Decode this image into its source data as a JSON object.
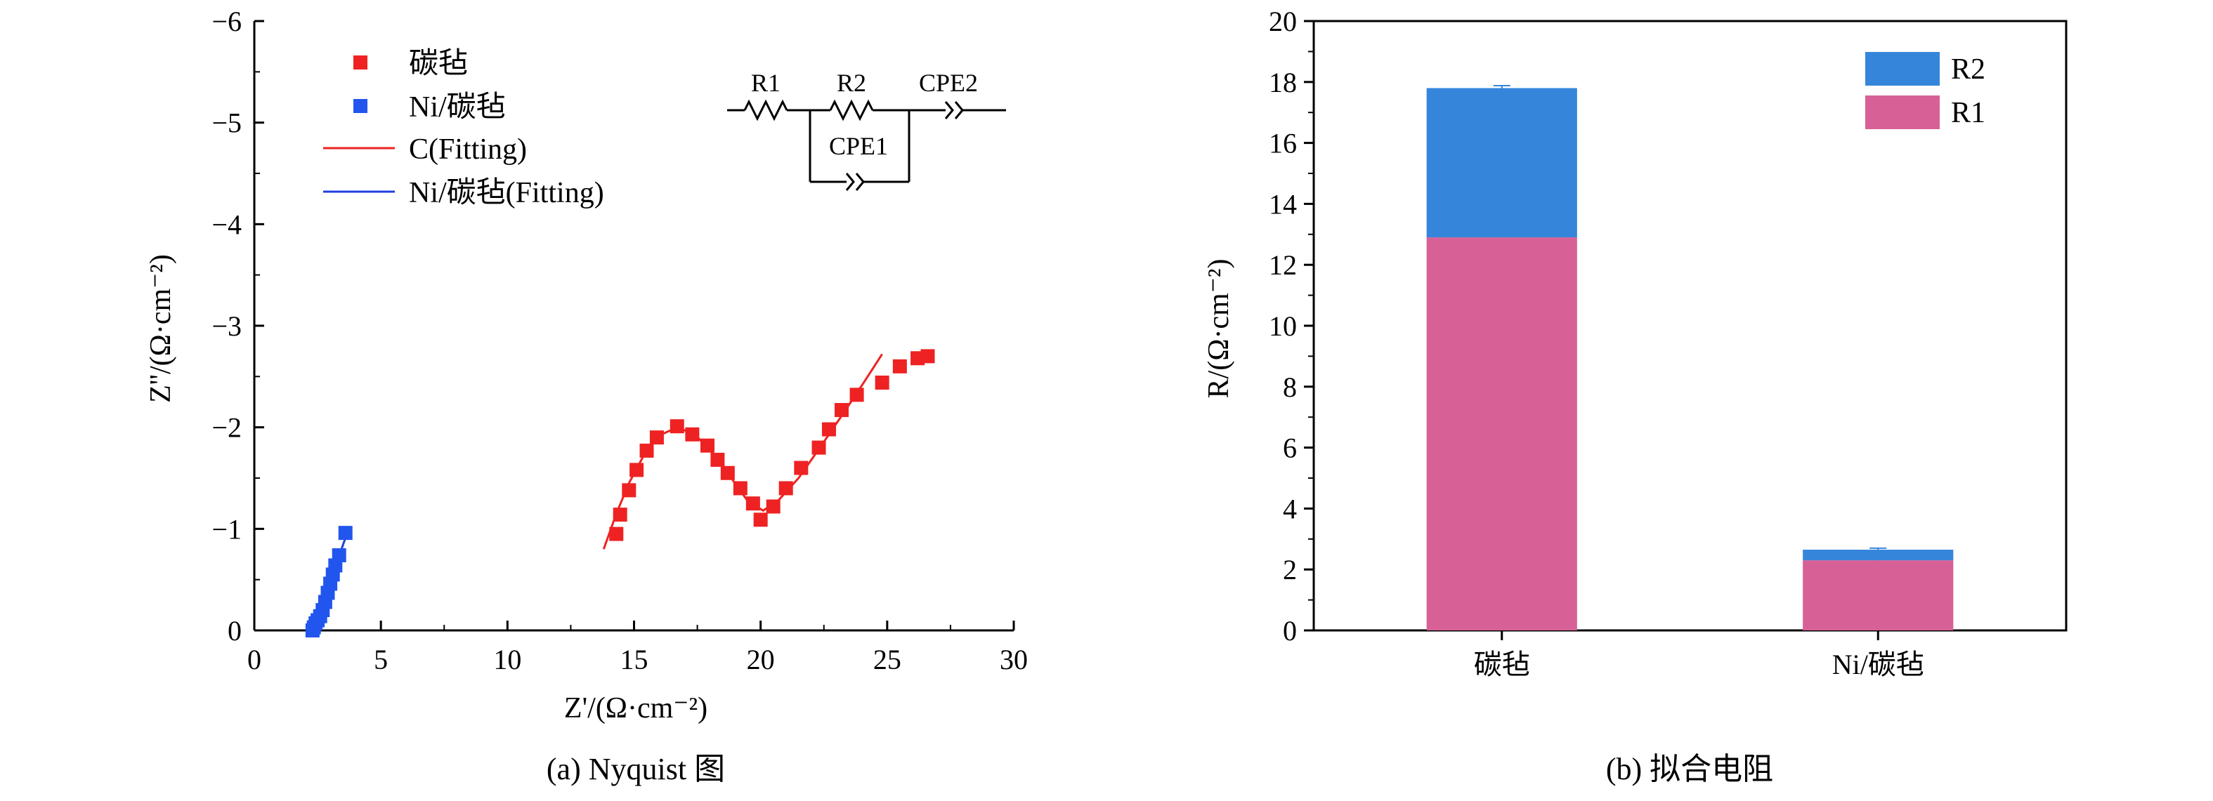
{
  "chart_data": [
    {
      "type": "scatter",
      "caption": "(a) Nyquist 图",
      "xlabel": "Z'/(Ω·cm⁻²)",
      "ylabel": "Z''/(Ω·cm⁻²)",
      "xlim": [
        0,
        30
      ],
      "ylim": [
        0,
        -6
      ],
      "y_inverted": true,
      "x_ticks": [
        "0",
        "5",
        "10",
        "15",
        "20",
        "25",
        "30"
      ],
      "y_ticks": [
        "0",
        "−1",
        "−2",
        "−3",
        "−4",
        "−5",
        "−6"
      ],
      "legend_position": "top-left",
      "series": [
        {
          "name": "碳毡",
          "kind": "markers",
          "color": "#ee2222",
          "points": [
            [
              14.3,
              -0.95
            ],
            [
              14.45,
              -1.14
            ],
            [
              14.8,
              -1.38
            ],
            [
              15.1,
              -1.58
            ],
            [
              15.5,
              -1.77
            ],
            [
              15.9,
              -1.9
            ],
            [
              16.7,
              -2.01
            ],
            [
              17.3,
              -1.93
            ],
            [
              17.9,
              -1.82
            ],
            [
              18.3,
              -1.68
            ],
            [
              18.7,
              -1.55
            ],
            [
              19.2,
              -1.4
            ],
            [
              19.7,
              -1.25
            ],
            [
              20.0,
              -1.09
            ],
            [
              20.5,
              -1.22
            ],
            [
              21.0,
              -1.4
            ],
            [
              21.6,
              -1.6
            ],
            [
              22.3,
              -1.8
            ],
            [
              22.7,
              -1.98
            ],
            [
              23.2,
              -2.17
            ],
            [
              23.8,
              -2.32
            ],
            [
              24.8,
              -2.44
            ],
            [
              25.5,
              -2.6
            ],
            [
              26.2,
              -2.68
            ],
            [
              26.6,
              -2.7
            ]
          ]
        },
        {
          "name": "Ni/碳毡",
          "kind": "markers",
          "color": "#2255ee",
          "points": [
            [
              2.3,
              0.0
            ],
            [
              2.35,
              -0.03
            ],
            [
              2.42,
              -0.07
            ],
            [
              2.5,
              -0.1
            ],
            [
              2.6,
              -0.14
            ],
            [
              2.7,
              -0.2
            ],
            [
              2.8,
              -0.28
            ],
            [
              2.9,
              -0.37
            ],
            [
              3.0,
              -0.46
            ],
            [
              3.1,
              -0.55
            ],
            [
              3.2,
              -0.64
            ],
            [
              3.35,
              -0.74
            ],
            [
              3.6,
              -0.96
            ]
          ]
        },
        {
          "name": "C(Fitting)",
          "kind": "line",
          "color": "#ee2222",
          "points": [
            [
              13.8,
              -0.8
            ],
            [
              14.3,
              -1.15
            ],
            [
              14.8,
              -1.45
            ],
            [
              15.4,
              -1.73
            ],
            [
              16.0,
              -1.92
            ],
            [
              16.7,
              -2.0
            ],
            [
              17.4,
              -1.93
            ],
            [
              18.2,
              -1.72
            ],
            [
              18.9,
              -1.48
            ],
            [
              19.5,
              -1.27
            ],
            [
              20.1,
              -1.18
            ],
            [
              20.7,
              -1.28
            ],
            [
              21.5,
              -1.5
            ],
            [
              22.4,
              -1.82
            ],
            [
              23.3,
              -2.15
            ],
            [
              24.1,
              -2.45
            ],
            [
              24.8,
              -2.72
            ]
          ]
        },
        {
          "name": "Ni/碳毡(Fitting)",
          "kind": "line",
          "color": "#1f3fdd",
          "points": [
            [
              2.2,
              0.0
            ],
            [
              2.4,
              -0.05
            ],
            [
              2.6,
              -0.15
            ],
            [
              2.8,
              -0.3
            ],
            [
              3.0,
              -0.47
            ],
            [
              3.2,
              -0.62
            ],
            [
              3.4,
              -0.77
            ],
            [
              3.7,
              -0.98
            ]
          ]
        }
      ],
      "circuit": {
        "labels": [
          "R1",
          "R2",
          "CPE2",
          "CPE1"
        ]
      }
    },
    {
      "type": "bar",
      "stacked": true,
      "caption": "(b) 拟合电阻",
      "ylabel": "R/(Ω·cm⁻²)",
      "ylim": [
        0,
        20
      ],
      "y_ticks": [
        "0",
        "2",
        "4",
        "6",
        "8",
        "10",
        "12",
        "14",
        "16",
        "18",
        "20"
      ],
      "categories": [
        "碳毡",
        "Ni/碳毡"
      ],
      "legend_position": "top-right",
      "series": [
        {
          "name": "R1",
          "color": "#d76096",
          "values": [
            12.9,
            2.3
          ],
          "errors": [
            0.15,
            0.12
          ]
        },
        {
          "name": "R2",
          "color": "#3586db",
          "values": [
            4.9,
            0.35
          ],
          "errors": [
            0.08,
            0.05
          ]
        }
      ]
    }
  ]
}
